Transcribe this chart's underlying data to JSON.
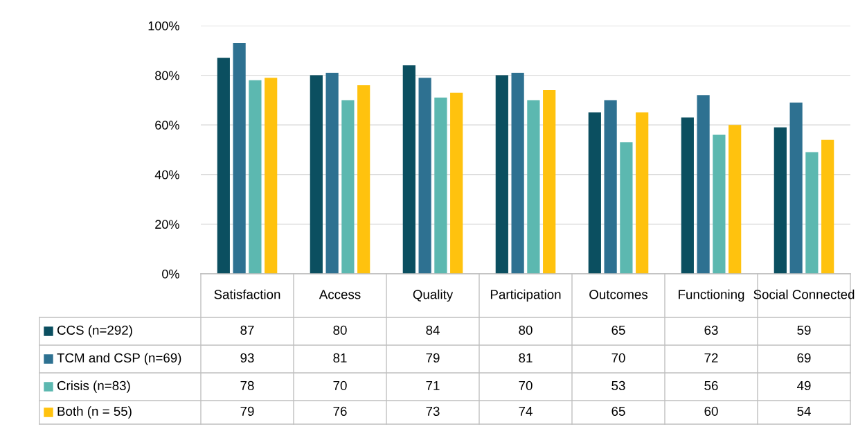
{
  "chart_data": {
    "type": "bar",
    "categories": [
      "Satisfaction",
      "Access",
      "Quality",
      "Participation",
      "Outcomes",
      "Functioning",
      "Social Connected"
    ],
    "series": [
      {
        "name": "CCS (n=292)",
        "color": "#0b4f60",
        "values": [
          87,
          80,
          84,
          80,
          65,
          63,
          59
        ]
      },
      {
        "name": "TCM and CSP (n=69)",
        "color": "#2e7191",
        "values": [
          93,
          81,
          79,
          81,
          70,
          72,
          69
        ]
      },
      {
        "name": "Crisis (n=83)",
        "color": "#5cb8b0",
        "values": [
          78,
          70,
          71,
          70,
          53,
          56,
          49
        ]
      },
      {
        "name": "Both (n = 55)",
        "color": "#ffc20e",
        "values": [
          79,
          76,
          73,
          74,
          65,
          60,
          54
        ]
      }
    ],
    "ylim": [
      0,
      100
    ],
    "yticks": [
      {
        "value": 0,
        "label": "0%"
      },
      {
        "value": 20,
        "label": "20%"
      },
      {
        "value": 40,
        "label": "40%"
      },
      {
        "value": 60,
        "label": "60%"
      },
      {
        "value": 80,
        "label": "80%"
      },
      {
        "value": 100,
        "label": "100%"
      }
    ],
    "grid": "y",
    "data_labels": true,
    "legend": "bottom"
  }
}
